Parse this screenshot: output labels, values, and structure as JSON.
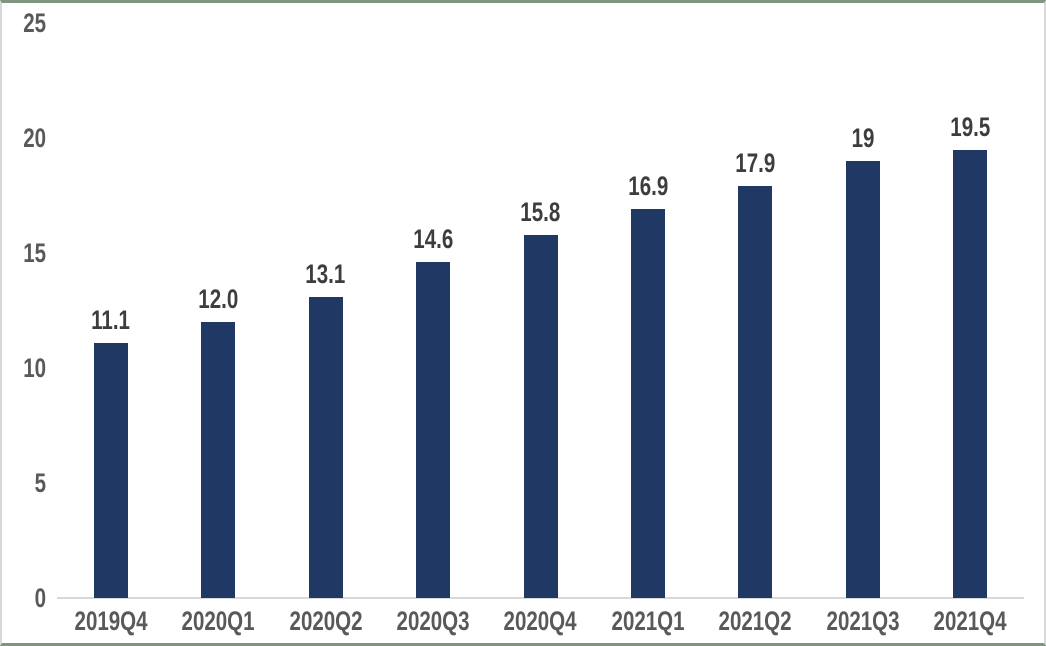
{
  "chart_data": {
    "type": "bar",
    "title": "",
    "categories": [
      "2019Q4",
      "2020Q1",
      "2020Q2",
      "2020Q3",
      "2020Q4",
      "2021Q1",
      "2021Q2",
      "2021Q3",
      "2021Q4"
    ],
    "values": [
      11.1,
      12.0,
      13.1,
      14.6,
      15.8,
      16.9,
      17.9,
      19,
      19.5
    ],
    "value_labels": [
      "11.1",
      "12.0",
      "13.1",
      "14.6",
      "15.8",
      "16.9",
      "17.9",
      "19",
      "19.5"
    ],
    "xlabel": "",
    "ylabel": "",
    "ylim": [
      0,
      25
    ],
    "yticks": [
      0,
      5,
      10,
      15,
      20,
      25
    ],
    "grid": false,
    "legend": "none",
    "bar_color": "#1f3864",
    "axis_line_color": "#d9d9d9",
    "axis_label_color": "#595959",
    "data_label_color": "#3d3d3d"
  },
  "frame": {
    "background": "#ffffff",
    "top_bottom_border_color": "#7d967d",
    "side_border_color": "#d8d8d8"
  }
}
